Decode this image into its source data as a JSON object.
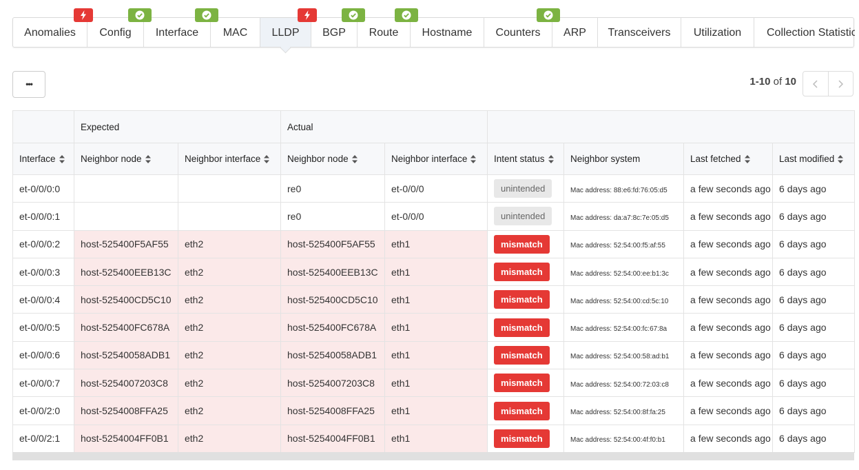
{
  "tabs": [
    {
      "label": "Anomalies",
      "badge": "error"
    },
    {
      "label": "Config",
      "badge": "ok"
    },
    {
      "label": "Interface",
      "badge": "ok"
    },
    {
      "label": "MAC"
    },
    {
      "label": "LLDP",
      "badge": "error"
    },
    {
      "label": "BGP",
      "badge": "ok"
    },
    {
      "label": "Route",
      "badge": "ok"
    },
    {
      "label": "Hostname"
    },
    {
      "label": "Counters",
      "badge": "ok"
    },
    {
      "label": "ARP"
    },
    {
      "label": "Transceivers"
    },
    {
      "label": "Utilization"
    },
    {
      "label": "Collection Statistics"
    }
  ],
  "actions_label": "•••",
  "pagination": {
    "range": "1-10",
    "of": "of",
    "total": 10
  },
  "table": {
    "groups": {
      "expected": "Expected",
      "actual": "Actual"
    },
    "columns": [
      {
        "label": "Interface",
        "sortable": true
      },
      {
        "label": "Neighbor node",
        "sortable": true
      },
      {
        "label": "Neighbor interface",
        "sortable": true
      },
      {
        "label": "Neighbor node",
        "sortable": true
      },
      {
        "label": "Neighbor interface",
        "sortable": true
      },
      {
        "label": "Intent status",
        "sortable": true
      },
      {
        "label": "Neighbor system",
        "sortable": false
      },
      {
        "label": "Last fetched",
        "sortable": true
      },
      {
        "label": "Last modified",
        "sortable": true
      }
    ],
    "rows": [
      {
        "highlight": false,
        "cells": [
          "et-0/0/0:0",
          null,
          null,
          "re0",
          "et-0/0/0",
          "unintended",
          "Mac address: 88:e6:fd:76:05:d5",
          "a few seconds ago",
          "6 days ago"
        ]
      },
      {
        "highlight": false,
        "cells": [
          "et-0/0/0:1",
          null,
          null,
          "re0",
          "et-0/0/0",
          "unintended",
          "Mac address: da:a7:8c:7e:05:d5",
          "a few seconds ago",
          "6 days ago"
        ]
      },
      {
        "highlight": true,
        "cells": [
          "et-0/0/0:2",
          "host-525400F5AF55",
          "eth2",
          "host-525400F5AF55",
          "eth1",
          "mismatch",
          "Mac address: 52:54:00:f5:af:55",
          "a few seconds ago",
          "6 days ago"
        ]
      },
      {
        "highlight": true,
        "cells": [
          "et-0/0/0:3",
          "host-525400EEB13C",
          "eth2",
          "host-525400EEB13C",
          "eth1",
          "mismatch",
          "Mac address: 52:54:00:ee:b1:3c",
          "a few seconds ago",
          "6 days ago"
        ]
      },
      {
        "highlight": true,
        "cells": [
          "et-0/0/0:4",
          "host-525400CD5C10",
          "eth2",
          "host-525400CD5C10",
          "eth1",
          "mismatch",
          "Mac address: 52:54:00:cd:5c:10",
          "a few seconds ago",
          "6 days ago"
        ]
      },
      {
        "highlight": true,
        "cells": [
          "et-0/0/0:5",
          "host-525400FC678A",
          "eth2",
          "host-525400FC678A",
          "eth1",
          "mismatch",
          "Mac address: 52:54:00:fc:67:8a",
          "a few seconds ago",
          "6 days ago"
        ]
      },
      {
        "highlight": true,
        "cells": [
          "et-0/0/0:6",
          "host-52540058ADB1",
          "eth2",
          "host-52540058ADB1",
          "eth1",
          "mismatch",
          "Mac address: 52:54:00:58:ad:b1",
          "a few seconds ago",
          "6 days ago"
        ]
      },
      {
        "highlight": true,
        "cells": [
          "et-0/0/0:7",
          "host-5254007203C8",
          "eth2",
          "host-5254007203C8",
          "eth1",
          "mismatch",
          "Mac address: 52:54:00:72:03:c8",
          "a few seconds ago",
          "6 days ago"
        ]
      },
      {
        "highlight": true,
        "cells": [
          "et-0/0/2:0",
          "host-5254008FFA25",
          "eth2",
          "host-5254008FFA25",
          "eth1",
          "mismatch",
          "Mac address: 52:54:00:8f:fa:25",
          "a few seconds ago",
          "6 days ago"
        ]
      },
      {
        "highlight": true,
        "cells": [
          "et-0/0/2:1",
          "host-5254004FF0B1",
          "eth2",
          "host-5254004FF0B1",
          "eth1",
          "mismatch",
          "Mac address: 52:54:00:4f:f0:b1",
          "a few seconds ago",
          "6 days ago"
        ]
      }
    ]
  }
}
